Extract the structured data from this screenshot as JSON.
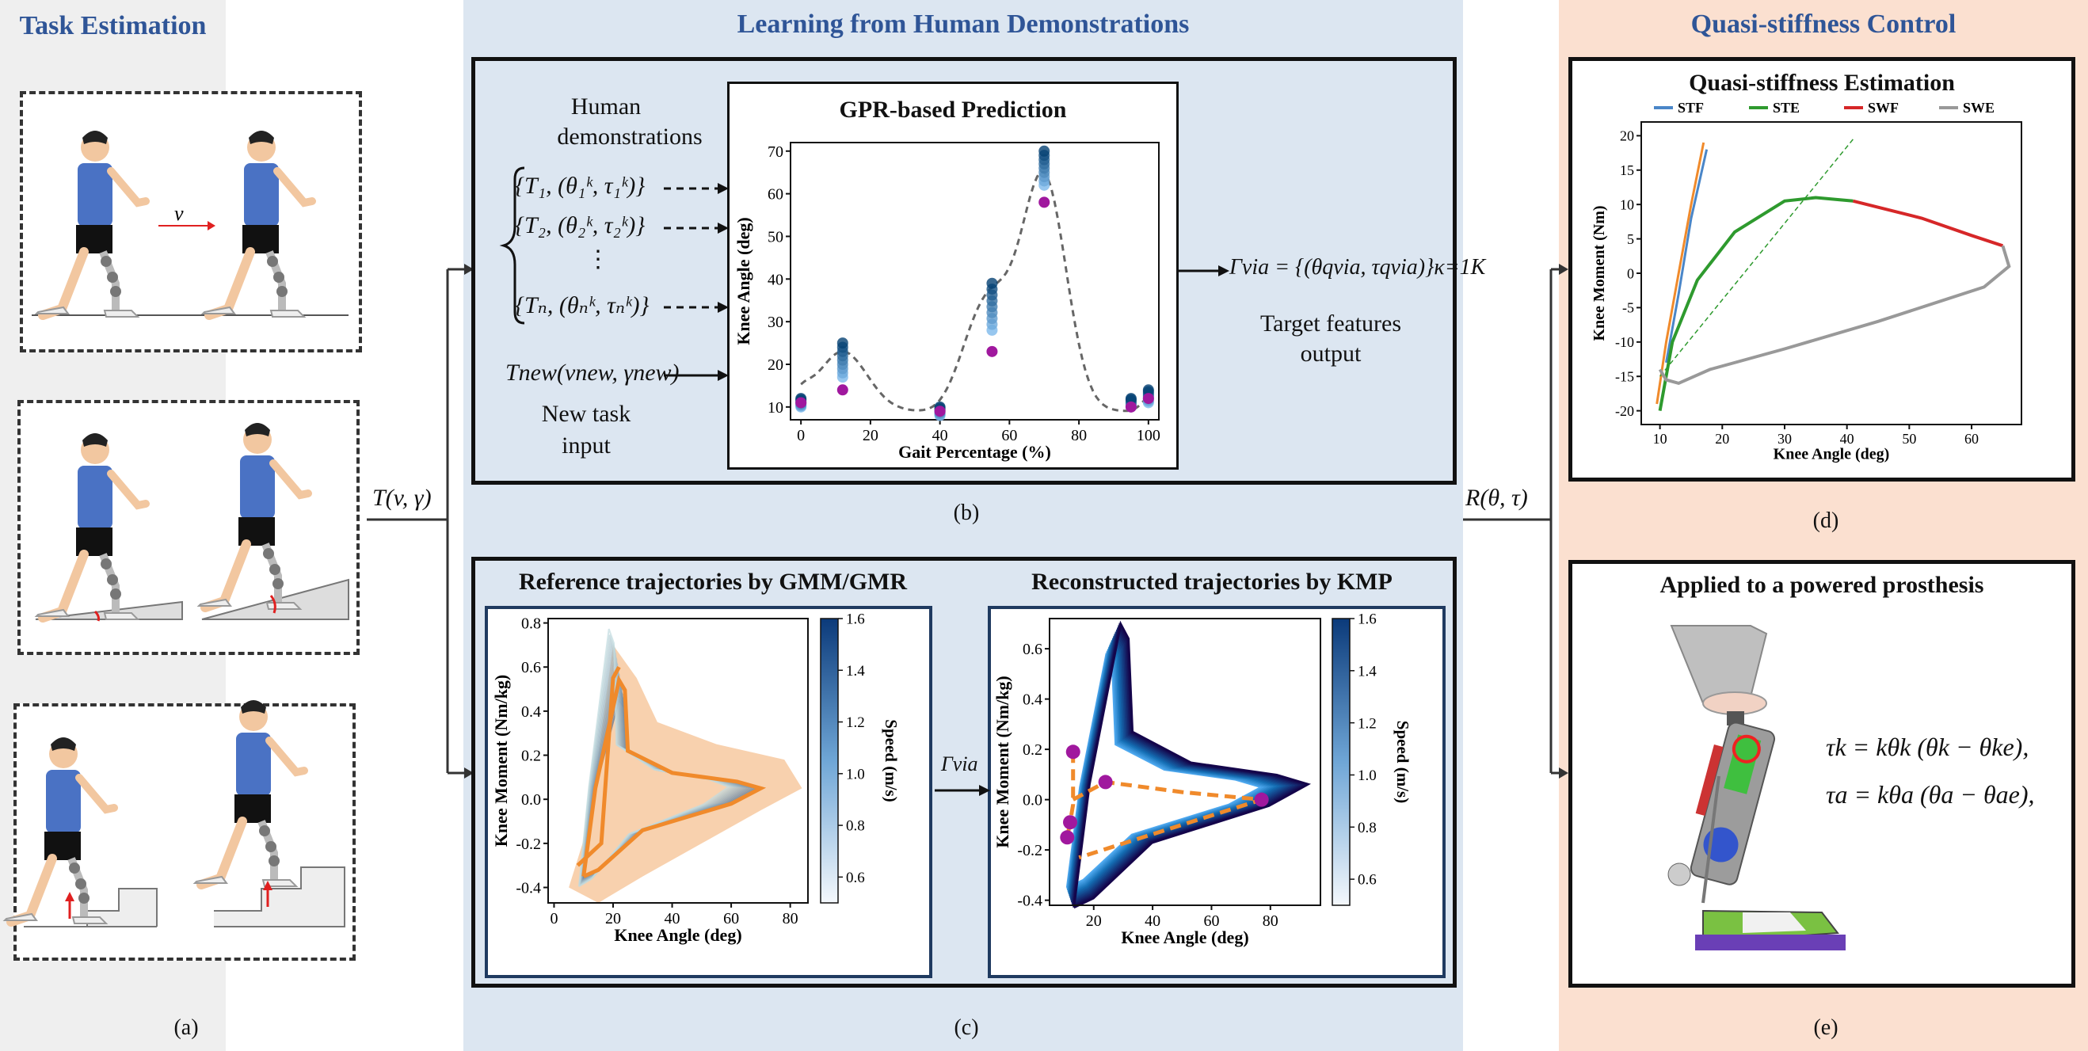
{
  "sections": {
    "task_estimation": "Task Estimation",
    "learning": "Learning from Human Demonstrations",
    "quasi": "Quasi-stiffness Control"
  },
  "captions": {
    "a": "(a)",
    "b": "(b)",
    "c": "(c)",
    "d": "(d)",
    "e": "(e)"
  },
  "task_panel": {
    "speed_symbol": "v"
  },
  "connectors": {
    "task_param": "T(v, γ)",
    "output_param": "R(θ, τ)"
  },
  "demos": {
    "heading_line1": "Human",
    "heading_line2": "demonstrations",
    "rows": [
      "{T₁, (θ₁ᵏ, τ₁ᵏ)}",
      "{T₂, (θ₂ᵏ, τ₂ᵏ)}",
      "⋮",
      "{Tₙ, (θₙᵏ, τₙᵏ)}"
    ],
    "new_task": "Tnew(vnew, γnew)",
    "new_task_line1": "New task",
    "new_task_line2": "input"
  },
  "gpr": {
    "title": "GPR-based Prediction",
    "xlabel": "Gait Percentage (%)",
    "ylabel": "Knee Angle (deg)",
    "xticks": [
      "0",
      "20",
      "40",
      "60",
      "80",
      "100"
    ],
    "yticks": [
      "10",
      "20",
      "30",
      "40",
      "50",
      "60",
      "70"
    ]
  },
  "target": {
    "formula": "Γvia = {(θqvia, τqvia)}κ=1K",
    "line1": "Target features",
    "line2": "output"
  },
  "gmm": {
    "title": "Reference trajectories by GMM/GMR",
    "xlabel": "Knee Angle (deg)",
    "ylabel": "Knee Moment (Nm/kg)",
    "xticks": [
      "0",
      "20",
      "40",
      "60",
      "80"
    ],
    "yticks": [
      "0.8",
      "0.6",
      "0.4",
      "0.2",
      "0.0",
      "-0.2",
      "-0.4"
    ],
    "cbar_label": "Speed (m/s)",
    "cbar_ticks": [
      "1.6",
      "1.4",
      "1.2",
      "1.0",
      "0.8",
      "0.6"
    ]
  },
  "gamma_via": "Γvia",
  "kmp": {
    "title": "Reconstructed trajectories by KMP",
    "xlabel": "Knee Angle (deg)",
    "ylabel": "Knee Moment (Nm/kg)",
    "xticks": [
      "20",
      "40",
      "60",
      "80"
    ],
    "yticks": [
      "0.6",
      "0.4",
      "0.2",
      "0.0",
      "-0.2",
      "-0.4"
    ],
    "cbar_label": "Speed (m/s)",
    "cbar_ticks": [
      "1.6",
      "1.4",
      "1.2",
      "1.0",
      "0.8",
      "0.6"
    ]
  },
  "quasi_est": {
    "title": "Quasi-stiffness Estimation",
    "legend": [
      "STF",
      "STE",
      "SWF",
      "SWE"
    ],
    "legend_colors": [
      "#4a86c8",
      "#2e9a2e",
      "#d62728",
      "#999999"
    ],
    "xlabel": "Knee Angle (deg)",
    "ylabel": "Knee Moment (Nm)",
    "xticks": [
      "10",
      "20",
      "30",
      "40",
      "50",
      "60"
    ],
    "yticks": [
      "20",
      "15",
      "10",
      "5",
      "0",
      "-5",
      "-10",
      "-15",
      "-20"
    ]
  },
  "prosthesis": {
    "title": "Applied to  a powered prosthesis",
    "eq1": "τk = kθk (θk − θke),",
    "eq2": "τa = kθa (θa − θae),"
  },
  "colors": {
    "accent": "#2f5597",
    "left_bg": "#efefef",
    "mid_bg": "#dce6f1",
    "right_bg": "#fbe0d0",
    "orange": "#f08a2b",
    "blue": "#2b6fb0",
    "purple": "#a0189e"
  },
  "chart_data": [
    {
      "type": "scatter",
      "title": "GPR-based Prediction",
      "xlabel": "Gait Percentage (%)",
      "ylabel": "Knee Angle (deg)",
      "xlim": [
        0,
        100
      ],
      "ylim": [
        7,
        72
      ],
      "series": [
        {
          "x": [
            0,
            12,
            40,
            55,
            70,
            95,
            100
          ],
          "y": [
            12,
            25,
            10,
            39,
            70,
            12,
            14
          ]
        },
        {
          "x": [
            0,
            12,
            40,
            55,
            70,
            95,
            100
          ],
          "y": [
            11,
            14,
            9,
            23,
            58,
            10,
            12
          ]
        }
      ]
    },
    {
      "type": "line",
      "title": "Reference trajectories by GMM/GMR",
      "xlabel": "Knee Angle (deg)",
      "ylabel": "Knee Moment (Nm/kg)",
      "xlim": [
        -2,
        86
      ],
      "ylim": [
        -0.47,
        0.82
      ],
      "colorbar": {
        "label": "Speed (m/s)",
        "range": [
          0.5,
          1.6
        ]
      }
    },
    {
      "type": "line",
      "title": "Reconstructed trajectories by KMP",
      "xlabel": "Knee Angle (deg)",
      "ylabel": "Knee Moment (Nm/kg)",
      "xlim": [
        5,
        97
      ],
      "ylim": [
        -0.42,
        0.72
      ],
      "colorbar": {
        "label": "Speed (m/s)",
        "range": [
          0.5,
          1.6
        ]
      },
      "series": [
        {
          "x": [
            13,
            12,
            11,
            24,
            77
          ],
          "y": [
            0.19,
            -0.09,
            -0.15,
            0.07,
            0.0
          ]
        }
      ]
    },
    {
      "type": "line",
      "title": "Quasi-stiffness Estimation",
      "xlabel": "Knee Angle (deg)",
      "ylabel": "Knee Moment (Nm)",
      "xlim": [
        7,
        68
      ],
      "ylim": [
        -22,
        22
      ],
      "series": [
        {
          "name": "STF"
        },
        {
          "name": "STE"
        },
        {
          "name": "SWF"
        },
        {
          "name": "SWE"
        }
      ]
    }
  ]
}
